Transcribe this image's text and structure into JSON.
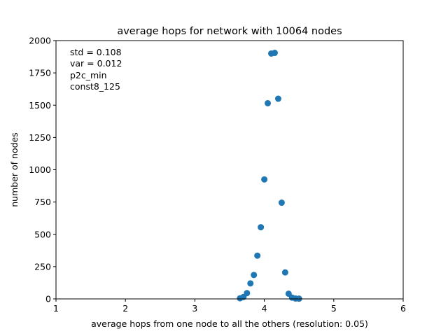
{
  "chart_data": {
    "type": "scatter",
    "title": "average hops for network with 10064 nodes",
    "xlabel": "average hops from one node to all  the others (resolution: 0.05)",
    "ylabel": "number of nodes",
    "xlim": [
      1,
      6
    ],
    "ylim": [
      0,
      2000
    ],
    "xticks": [
      "1",
      "2",
      "3",
      "4",
      "5",
      "6"
    ],
    "yticks": [
      "0",
      "250",
      "500",
      "750",
      "1000",
      "1250",
      "1500",
      "1750",
      "2000"
    ],
    "grid": false,
    "annotations": [
      "std = 0.108",
      "var = 0.012",
      "p2c_min",
      "const8_125"
    ],
    "marker_color": "#1f77b4",
    "series": [
      {
        "points": [
          {
            "x": 3.65,
            "y": 5
          },
          {
            "x": 3.7,
            "y": 15
          },
          {
            "x": 3.75,
            "y": 45
          },
          {
            "x": 3.8,
            "y": 120
          },
          {
            "x": 3.85,
            "y": 185
          },
          {
            "x": 3.9,
            "y": 335
          },
          {
            "x": 3.95,
            "y": 555
          },
          {
            "x": 4.0,
            "y": 925
          },
          {
            "x": 4.05,
            "y": 1515
          },
          {
            "x": 4.1,
            "y": 1900
          },
          {
            "x": 4.15,
            "y": 1905
          },
          {
            "x": 4.2,
            "y": 1550
          },
          {
            "x": 4.25,
            "y": 745
          },
          {
            "x": 4.3,
            "y": 205
          },
          {
            "x": 4.35,
            "y": 40
          },
          {
            "x": 4.4,
            "y": 10
          },
          {
            "x": 4.45,
            "y": 3
          },
          {
            "x": 4.5,
            "y": 2
          }
        ]
      }
    ]
  }
}
